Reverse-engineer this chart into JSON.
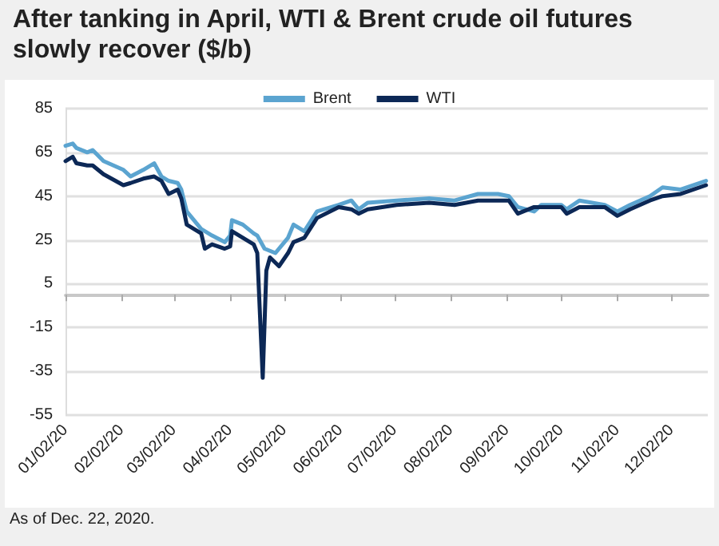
{
  "chart_data": {
    "type": "line",
    "title": "After tanking in April, WTI & Brent crude oil futures slowly recover ($/b)",
    "annotations": [
      "As of Dec. 22, 2020."
    ],
    "xlim": [
      "2020-01-02",
      "2020-12-22"
    ],
    "xticks": [
      {
        "value": "2020-01-02",
        "label": "01/02/20"
      },
      {
        "value": "2020-02-02",
        "label": "02/02/20"
      },
      {
        "value": "2020-03-02",
        "label": "03/02/20"
      },
      {
        "value": "2020-04-02",
        "label": "04/02/20"
      },
      {
        "value": "2020-05-02",
        "label": "05/02/20"
      },
      {
        "value": "2020-06-02",
        "label": "06/02/20"
      },
      {
        "value": "2020-07-02",
        "label": "07/02/20"
      },
      {
        "value": "2020-08-02",
        "label": "08/02/20"
      },
      {
        "value": "2020-09-02",
        "label": "09/02/20"
      },
      {
        "value": "2020-10-02",
        "label": "10/02/20"
      },
      {
        "value": "2020-11-02",
        "label": "11/02/20"
      },
      {
        "value": "2020-12-02",
        "label": "12/02/20"
      }
    ],
    "ylim": [
      -55,
      85
    ],
    "yticks": [
      -55,
      -35,
      -15,
      5,
      25,
      45,
      65,
      85
    ],
    "grid": "y",
    "legend": "top",
    "marker": "none",
    "line_style": "solid",
    "series": [
      {
        "name": "Brent",
        "color": "#5ba4d0",
        "x": [
          "2020-01-02",
          "2020-01-06",
          "2020-01-08",
          "2020-01-14",
          "2020-01-17",
          "2020-01-23",
          "2020-02-03",
          "2020-02-07",
          "2020-02-14",
          "2020-02-20",
          "2020-02-24",
          "2020-02-28",
          "2020-03-04",
          "2020-03-06",
          "2020-03-09",
          "2020-03-17",
          "2020-03-23",
          "2020-03-30",
          "2020-04-02",
          "2020-04-03",
          "2020-04-09",
          "2020-04-15",
          "2020-04-17",
          "2020-04-21",
          "2020-04-27",
          "2020-05-04",
          "2020-05-07",
          "2020-05-13",
          "2020-05-20",
          "2020-06-01",
          "2020-06-08",
          "2020-06-12",
          "2020-06-17",
          "2020-07-03",
          "2020-07-21",
          "2020-08-04",
          "2020-08-17",
          "2020-08-28",
          "2020-09-03",
          "2020-09-08",
          "2020-09-17",
          "2020-09-21",
          "2020-10-02",
          "2020-10-05",
          "2020-10-12",
          "2020-10-26",
          "2020-11-02",
          "2020-11-09",
          "2020-11-20",
          "2020-11-27",
          "2020-12-07",
          "2020-12-21"
        ],
        "values": [
          68,
          69,
          67,
          65,
          66,
          61,
          57,
          54,
          57,
          60,
          54,
          52,
          51,
          48,
          38,
          30,
          27,
          24,
          27,
          34,
          32,
          28,
          27,
          21,
          19,
          26,
          32,
          29,
          38,
          41,
          43,
          39,
          42,
          43,
          44,
          43,
          46,
          46,
          45,
          40,
          38,
          41,
          41,
          39,
          43,
          41,
          38,
          41,
          45,
          49,
          48,
          52
        ]
      },
      {
        "name": "WTI",
        "color": "#0c2856",
        "x": [
          "2020-01-02",
          "2020-01-06",
          "2020-01-08",
          "2020-01-14",
          "2020-01-17",
          "2020-01-23",
          "2020-02-03",
          "2020-02-07",
          "2020-02-14",
          "2020-02-20",
          "2020-02-24",
          "2020-02-28",
          "2020-03-04",
          "2020-03-06",
          "2020-03-09",
          "2020-03-17",
          "2020-03-19",
          "2020-03-23",
          "2020-03-30",
          "2020-04-02",
          "2020-04-03",
          "2020-04-15",
          "2020-04-17",
          "2020-04-20",
          "2020-04-22",
          "2020-04-24",
          "2020-04-29",
          "2020-05-04",
          "2020-05-07",
          "2020-05-13",
          "2020-05-20",
          "2020-06-01",
          "2020-06-08",
          "2020-06-12",
          "2020-06-17",
          "2020-07-03",
          "2020-07-21",
          "2020-08-04",
          "2020-08-17",
          "2020-08-28",
          "2020-09-03",
          "2020-09-08",
          "2020-09-17",
          "2020-09-21",
          "2020-10-02",
          "2020-10-05",
          "2020-10-12",
          "2020-10-26",
          "2020-11-02",
          "2020-11-09",
          "2020-11-20",
          "2020-11-27",
          "2020-12-07",
          "2020-12-21"
        ],
        "values": [
          61,
          63,
          60,
          59,
          59,
          55,
          50,
          51,
          53,
          54,
          52,
          46,
          48,
          44,
          32,
          28,
          21,
          23,
          21,
          22,
          29,
          23,
          19,
          -38,
          11,
          17,
          13,
          19,
          24,
          26,
          35,
          40,
          39,
          37,
          39,
          41,
          42,
          41,
          43,
          43,
          43,
          37,
          40,
          40,
          40,
          37,
          40,
          40,
          36,
          39,
          43,
          45,
          46,
          50
        ]
      }
    ]
  }
}
